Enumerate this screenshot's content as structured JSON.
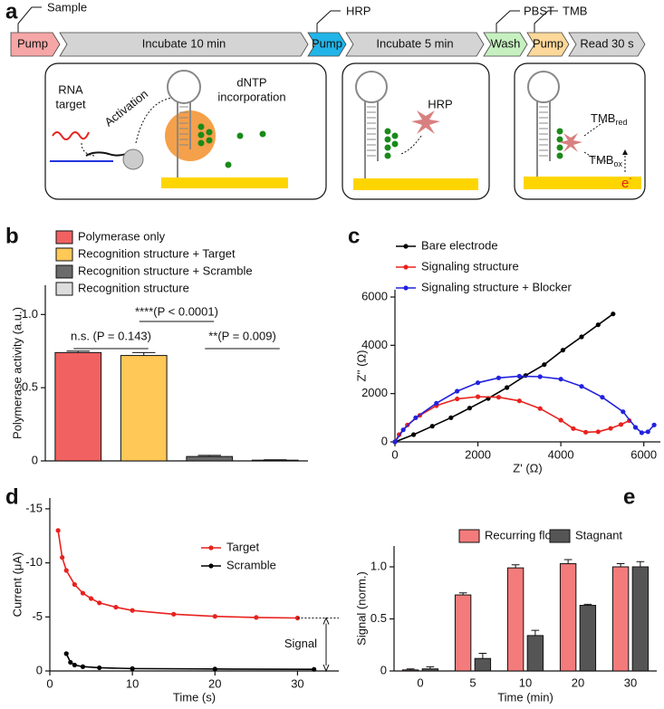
{
  "diagram": {
    "panel_label": "a",
    "steps": [
      "Pump",
      "Incubate 10 min",
      "Pump",
      "Incubate 5 min",
      "Wash",
      "Pump",
      "Read 30 s"
    ],
    "callouts": [
      "Sample",
      "HRP",
      "PBST",
      "TMB"
    ],
    "box1": {
      "rna_target": [
        "RNA",
        "target"
      ],
      "activation": "Activation",
      "dntp": [
        "dNTP",
        "incorporation"
      ]
    },
    "box2": {
      "hrp": "HRP"
    },
    "box3": {
      "tmb_red": {
        "text": "TMB",
        "sub": "red"
      },
      "tmb_ox": {
        "text": "TMB",
        "sub": "ox"
      },
      "electron": {
        "text": "e",
        "sup": "-"
      }
    }
  },
  "chart_data": [
    {
      "type": "bar",
      "panel_label": "b",
      "ylabel": "Polymerase activity (a.u.)",
      "categories": [
        null
      ],
      "series": [
        {
          "name": "Polymerase only",
          "color": "#f26161",
          "values": [
            0.74
          ],
          "errors": [
            0.01
          ]
        },
        {
          "name": "Recognition structure + Target",
          "color": "#ffc857",
          "values": [
            0.72
          ],
          "errors": [
            0.02
          ]
        },
        {
          "name": "Recognition structure + Scramble",
          "color": "#6b6b6b",
          "values": [
            0.03
          ],
          "errors": [
            0.008
          ]
        },
        {
          "name": "Recognition structure",
          "color": "#dddddd",
          "values": [
            0.005
          ],
          "errors": [
            0.003
          ]
        }
      ],
      "annotations": [
        "n.s. (P = 0.143)",
        "****(P < 0.0001)",
        "**(P = 0.009)"
      ],
      "ylim": [
        0,
        1.2
      ],
      "yticks": [
        0,
        0.5,
        {
          "value": 1,
          "label": "1.0"
        }
      ]
    },
    {
      "type": "line",
      "panel_label": "c",
      "xlabel": "Z' (Ω)",
      "ylabel": "Z'' (Ω)",
      "series": [
        {
          "name": "Bare electrode",
          "color": "#000000",
          "x": [
            0,
            450,
            900,
            1350,
            1800,
            2250,
            2700,
            3150,
            3600,
            4050,
            4500,
            4900,
            5260
          ],
          "values": [
            0,
            300,
            650,
            1000,
            1400,
            1800,
            2250,
            2750,
            3200,
            3800,
            4350,
            4850,
            5300
          ]
        },
        {
          "name": "Signaling structure",
          "color": "#e8221e",
          "x": [
            0,
            100,
            300,
            600,
            1000,
            1500,
            2000,
            2500,
            3000,
            3500,
            4000,
            4300,
            4600,
            4900,
            5200,
            5450,
            5650
          ],
          "values": [
            0,
            300,
            700,
            1100,
            1500,
            1780,
            1870,
            1850,
            1700,
            1380,
            900,
            550,
            400,
            420,
            560,
            720,
            880
          ]
        },
        {
          "name": "Signaling structure + Blocker",
          "color": "#2222dd",
          "x": [
            0,
            200,
            500,
            1000,
            1500,
            2000,
            2500,
            3000,
            3500,
            4000,
            4500,
            5000,
            5500,
            5800,
            5950,
            6100,
            6250
          ],
          "values": [
            0,
            500,
            1000,
            1600,
            2100,
            2450,
            2650,
            2720,
            2700,
            2600,
            2300,
            1850,
            1250,
            600,
            380,
            420,
            700
          ]
        }
      ],
      "xlim": [
        0,
        6400
      ],
      "xticks": [
        0,
        2000,
        4000,
        6000
      ],
      "ylim": [
        0,
        6300
      ],
      "yticks": [
        0,
        2000,
        4000,
        6000
      ]
    },
    {
      "type": "line",
      "panel_label": "d",
      "xlabel": "Time (s)",
      "ylabel": "Current (μA)",
      "annotation": "Signal",
      "series": [
        {
          "name": "Target",
          "color": "#e8221e",
          "x": [
            1,
            1.5,
            2,
            3,
            4,
            5,
            6,
            8,
            10,
            15,
            20,
            25,
            30
          ],
          "values": [
            -13,
            -10.5,
            -9.3,
            -8,
            -7.2,
            -6.7,
            -6.3,
            -5.9,
            -5.6,
            -5.25,
            -5.05,
            -4.95,
            -4.9
          ]
        },
        {
          "name": "Scramble",
          "color": "#000000",
          "x": [
            2,
            2.5,
            3,
            4,
            6,
            10,
            20,
            32
          ],
          "values": [
            -1.6,
            -0.8,
            -0.55,
            -0.4,
            -0.3,
            -0.22,
            -0.18,
            -0.15
          ]
        }
      ],
      "xlim": [
        0,
        35
      ],
      "xticks": [
        0,
        10,
        20,
        30
      ],
      "ylim": [
        0,
        -16
      ],
      "yticks": [
        0,
        -5,
        -10,
        -15
      ]
    },
    {
      "type": "bar",
      "panel_label": "e",
      "xlabel": "Time (min)",
      "ylabel": "Signal (norm.)",
      "categories": [
        "0",
        "5",
        "10",
        "20",
        "30"
      ],
      "series": [
        {
          "name": "Recurring flow",
          "color": "#f47b7b",
          "values": [
            0.01,
            0.73,
            0.99,
            1.03,
            1.0
          ],
          "errors": [
            0.01,
            0.02,
            0.03,
            0.04,
            0.03
          ]
        },
        {
          "name": "Stagnant",
          "color": "#555555",
          "values": [
            0.02,
            0.12,
            0.34,
            0.63,
            1.0
          ],
          "errors": [
            0.02,
            0.05,
            0.05,
            0.01,
            0.05
          ]
        }
      ],
      "ylim": [
        0,
        1.2
      ],
      "yticks": [
        0,
        0.5,
        {
          "value": 1,
          "label": "1.0"
        }
      ]
    }
  ]
}
